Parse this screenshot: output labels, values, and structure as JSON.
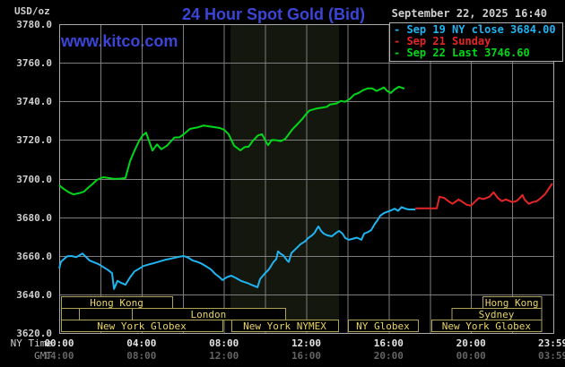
{
  "header": {
    "unit_label": "USD/oz",
    "title": "24 Hour Spot Gold (Bid)",
    "datetime": "September 22, 2025 16:40",
    "watermark": "www.kitco.com"
  },
  "legend": {
    "marker": "-",
    "items": [
      {
        "text": "Sep 19 NY close 3684.00",
        "color": "#1fb4f2"
      },
      {
        "text": "Sep 21 Sunday",
        "color": "#e62626"
      },
      {
        "text": "Sep 22 Last 3746.60",
        "color": "#00d818"
      }
    ]
  },
  "axes": {
    "ny_label": "NY Time",
    "gmt_label": "GMT",
    "y_tick_labels": [
      "3780.0",
      "3760.0",
      "3740.0",
      "3720.0",
      "3700.0",
      "3680.0",
      "3660.0",
      "3640.0",
      "3620.0"
    ],
    "x_ticks": [
      {
        "h": 0,
        "ny": "00:00",
        "gmt": "04:00"
      },
      {
        "h": 4,
        "ny": "04:00",
        "gmt": "08:00"
      },
      {
        "h": 8,
        "ny": "08:00",
        "gmt": "12:00"
      },
      {
        "h": 12,
        "ny": "12:00",
        "gmt": "16:00"
      },
      {
        "h": 16,
        "ny": "16:00",
        "gmt": "20:00"
      },
      {
        "h": 20,
        "ny": "20:00",
        "gmt": "00:00"
      },
      {
        "h": 23.983,
        "ny": "23:59",
        "gmt": "03:59"
      }
    ]
  },
  "sessions": {
    "text_color": "#e8d466",
    "border_color": "#b0a254",
    "rows": [
      {
        "row": 1,
        "label": "Hong Kong",
        "start": 0.09,
        "end": 5.49
      },
      {
        "row": 1,
        "label": "Hong Kong",
        "start": 20.55,
        "end": 23.42
      },
      {
        "row": 2,
        "label": "",
        "start": 0.09,
        "end": 0.96
      },
      {
        "row": 2,
        "label": "",
        "start": 0.96,
        "end": 3.52
      },
      {
        "row": 2,
        "label": "London",
        "start": 3.52,
        "end": 10.97
      },
      {
        "row": 2,
        "label": "Sydney",
        "start": 19.05,
        "end": 23.42
      },
      {
        "row": 3,
        "label": "New York Globex",
        "start": 0.09,
        "end": 7.93
      },
      {
        "row": 3,
        "label": "New York NYMEX",
        "start": 8.36,
        "end": 13.55
      },
      {
        "row": 3,
        "label": "NY Globex",
        "start": 14.02,
        "end": 17.42
      },
      {
        "row": 3,
        "label": "New York Globex",
        "start": 18.08,
        "end": 23.42
      }
    ]
  },
  "chart_data": {
    "type": "line",
    "title": "24 Hour Spot Gold (Bid)",
    "xlabel": "NY Time (hours 00:00-23:59)",
    "ylabel": "USD/oz",
    "xlim": [
      0,
      24
    ],
    "ylim": [
      3620,
      3780
    ],
    "grid": true,
    "grid_color": "#7e7e7e",
    "border_color": "#a8a8a8",
    "shaded_region": {
      "start": 8.32,
      "end": 13.59,
      "color": "#14170d"
    },
    "series": [
      {
        "name": "Sep 19 NY close",
        "close_value": 3684.0,
        "color": "#1fb4f2",
        "points": [
          [
            0,
            3653.5
          ],
          [
            0.09,
            3657
          ],
          [
            0.39,
            3659.8
          ],
          [
            0.6,
            3659.9
          ],
          [
            0.83,
            3659.3
          ],
          [
            1.13,
            3661.2
          ],
          [
            1.48,
            3657.5
          ],
          [
            1.92,
            3655.6
          ],
          [
            2.35,
            3652.8
          ],
          [
            2.57,
            3651
          ],
          [
            2.66,
            3642.8
          ],
          [
            2.83,
            3647
          ],
          [
            3.0,
            3646
          ],
          [
            3.22,
            3645
          ],
          [
            3.44,
            3648.8
          ],
          [
            3.66,
            3651.9
          ],
          [
            3.88,
            3653.3
          ],
          [
            4.09,
            3654.7
          ],
          [
            4.31,
            3655.4
          ],
          [
            4.53,
            3656
          ],
          [
            5.18,
            3658
          ],
          [
            5.84,
            3659.5
          ],
          [
            6.05,
            3659.9
          ],
          [
            6.27,
            3659
          ],
          [
            6.49,
            3657.5
          ],
          [
            6.71,
            3656.8
          ],
          [
            6.92,
            3655.9
          ],
          [
            7.14,
            3654.5
          ],
          [
            7.36,
            3653
          ],
          [
            7.58,
            3650.6
          ],
          [
            7.8,
            3648.8
          ],
          [
            7.93,
            3647.4
          ],
          [
            8.14,
            3648.9
          ],
          [
            8.36,
            3649.7
          ],
          [
            8.58,
            3648.5
          ],
          [
            8.8,
            3647.2
          ],
          [
            8.97,
            3646.5
          ],
          [
            9.19,
            3645.7
          ],
          [
            9.32,
            3645
          ],
          [
            9.49,
            3644.3
          ],
          [
            9.63,
            3643.7
          ],
          [
            9.76,
            3648
          ],
          [
            9.97,
            3650.6
          ],
          [
            10.19,
            3653
          ],
          [
            10.41,
            3656.8
          ],
          [
            10.54,
            3658.2
          ],
          [
            10.63,
            3662.3
          ],
          [
            10.76,
            3661
          ],
          [
            10.89,
            3660.2
          ],
          [
            11.06,
            3657.7
          ],
          [
            11.15,
            3656.8
          ],
          [
            11.28,
            3661.4
          ],
          [
            11.5,
            3663.7
          ],
          [
            11.72,
            3666
          ],
          [
            11.93,
            3667.4
          ],
          [
            12.11,
            3669.3
          ],
          [
            12.28,
            3670.6
          ],
          [
            12.41,
            3672
          ],
          [
            12.5,
            3673.8
          ],
          [
            12.59,
            3675.2
          ],
          [
            12.72,
            3672.9
          ],
          [
            12.85,
            3671.5
          ],
          [
            13.02,
            3670.6
          ],
          [
            13.24,
            3670.1
          ],
          [
            13.46,
            3672
          ],
          [
            13.59,
            3672.9
          ],
          [
            13.76,
            3671.5
          ],
          [
            13.89,
            3669.2
          ],
          [
            14.07,
            3668.3
          ],
          [
            14.28,
            3668.9
          ],
          [
            14.46,
            3669.4
          ],
          [
            14.68,
            3668.3
          ],
          [
            14.81,
            3671.5
          ],
          [
            15.02,
            3672.4
          ],
          [
            15.16,
            3673.4
          ],
          [
            15.33,
            3676.6
          ],
          [
            15.46,
            3678.4
          ],
          [
            15.59,
            3680.7
          ],
          [
            15.77,
            3682.1
          ],
          [
            15.94,
            3682.8
          ],
          [
            16.11,
            3683.5
          ],
          [
            16.29,
            3684.4
          ],
          [
            16.46,
            3683.3
          ],
          [
            16.63,
            3685.2
          ],
          [
            16.81,
            3684.4
          ],
          [
            16.98,
            3684
          ],
          [
            17.3,
            3684
          ]
        ]
      },
      {
        "name": "Sep 21 Sunday",
        "color": "#e62626",
        "points": [
          [
            17.3,
            3684.6
          ],
          [
            18.34,
            3684.6
          ],
          [
            18.47,
            3690.6
          ],
          [
            18.7,
            3690
          ],
          [
            18.9,
            3688.3
          ],
          [
            19.1,
            3686.9
          ],
          [
            19.4,
            3689.2
          ],
          [
            19.8,
            3686.4
          ],
          [
            20.0,
            3686
          ],
          [
            20.3,
            3689.2
          ],
          [
            20.4,
            3690
          ],
          [
            20.6,
            3689.4
          ],
          [
            20.9,
            3690.6
          ],
          [
            21.1,
            3692.9
          ],
          [
            21.3,
            3690
          ],
          [
            21.5,
            3688.3
          ],
          [
            21.7,
            3689.2
          ],
          [
            22.0,
            3687.8
          ],
          [
            22.2,
            3688.3
          ],
          [
            22.3,
            3689.2
          ],
          [
            22.5,
            3691.5
          ],
          [
            22.6,
            3689.2
          ],
          [
            22.8,
            3686.9
          ],
          [
            23.0,
            3687.8
          ],
          [
            23.2,
            3688.3
          ],
          [
            23.4,
            3690
          ],
          [
            23.6,
            3692
          ],
          [
            23.8,
            3695.2
          ],
          [
            23.95,
            3697.5
          ]
        ]
      },
      {
        "name": "Sep 22 Last",
        "last_value": 3746.6,
        "color": "#00d818",
        "points": [
          [
            0,
            3696.5
          ],
          [
            0.2,
            3694.8
          ],
          [
            0.45,
            3693
          ],
          [
            0.7,
            3691.8
          ],
          [
            0.95,
            3692.4
          ],
          [
            1.2,
            3693.2
          ],
          [
            1.4,
            3695.2
          ],
          [
            1.6,
            3697
          ],
          [
            1.83,
            3699.3
          ],
          [
            2.13,
            3700.7
          ],
          [
            2.4,
            3700.3
          ],
          [
            2.7,
            3699.8
          ],
          [
            3.0,
            3700
          ],
          [
            3.22,
            3700.3
          ],
          [
            3.44,
            3709
          ],
          [
            3.66,
            3714.5
          ],
          [
            3.88,
            3719.5
          ],
          [
            4.05,
            3722.3
          ],
          [
            4.22,
            3723.8
          ],
          [
            4.4,
            3718.5
          ],
          [
            4.53,
            3714.5
          ],
          [
            4.75,
            3717.7
          ],
          [
            4.96,
            3715.2
          ],
          [
            5.23,
            3717
          ],
          [
            5.4,
            3719
          ],
          [
            5.6,
            3721.3
          ],
          [
            5.84,
            3721.4
          ],
          [
            6.05,
            3723
          ],
          [
            6.36,
            3725.8
          ],
          [
            6.71,
            3726.5
          ],
          [
            7.01,
            3727.5
          ],
          [
            7.45,
            3726.8
          ],
          [
            7.8,
            3726.2
          ],
          [
            8.01,
            3725.3
          ],
          [
            8.23,
            3723
          ],
          [
            8.5,
            3717
          ],
          [
            8.8,
            3714.6
          ],
          [
            9.0,
            3716.3
          ],
          [
            9.2,
            3716.5
          ],
          [
            9.4,
            3719.5
          ],
          [
            9.65,
            3722.3
          ],
          [
            9.85,
            3723
          ],
          [
            10.05,
            3719
          ],
          [
            10.15,
            3717.3
          ],
          [
            10.32,
            3720
          ],
          [
            10.54,
            3719.9
          ],
          [
            10.76,
            3719.4
          ],
          [
            10.97,
            3720.5
          ],
          [
            11.15,
            3723
          ],
          [
            11.37,
            3726
          ],
          [
            11.6,
            3728.5
          ],
          [
            11.8,
            3730.8
          ],
          [
            11.95,
            3732.9
          ],
          [
            12.15,
            3735.2
          ],
          [
            12.46,
            3736.2
          ],
          [
            12.8,
            3736.8
          ],
          [
            13.0,
            3737.2
          ],
          [
            13.15,
            3738.4
          ],
          [
            13.46,
            3738.9
          ],
          [
            13.68,
            3740.2
          ],
          [
            13.89,
            3739.8
          ],
          [
            14.11,
            3741.2
          ],
          [
            14.33,
            3743.5
          ],
          [
            14.55,
            3744.4
          ],
          [
            14.76,
            3745.8
          ],
          [
            14.98,
            3746.7
          ],
          [
            15.2,
            3746.7
          ],
          [
            15.42,
            3745.4
          ],
          [
            15.64,
            3746.5
          ],
          [
            15.77,
            3747.2
          ],
          [
            15.94,
            3745.3
          ],
          [
            16.11,
            3744.4
          ],
          [
            16.29,
            3746.2
          ],
          [
            16.5,
            3747.6
          ],
          [
            16.63,
            3747.1
          ],
          [
            16.76,
            3746.6
          ]
        ]
      }
    ]
  }
}
